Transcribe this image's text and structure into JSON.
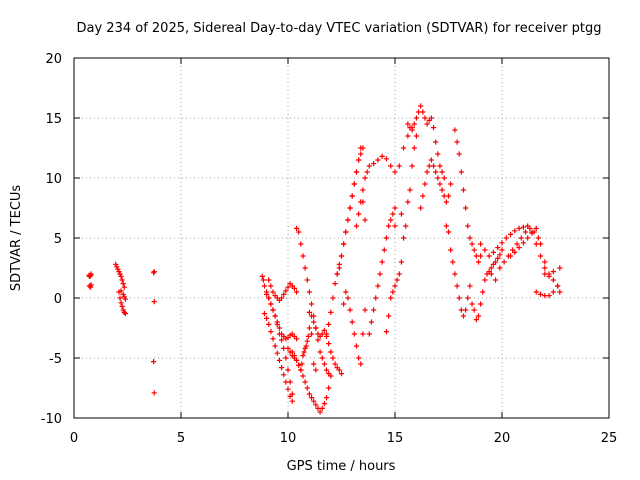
{
  "chart_data": {
    "type": "scatter",
    "title": "Day 234 of 2025, Sidereal Day-to-day VTEC variation (SDTVAR) for receiver ptgg",
    "xlabel": "GPS time / hours",
    "ylabel": "SDTVAR / TECUs",
    "xlim": [
      0,
      25
    ],
    "ylim": [
      -10,
      20
    ],
    "xticks": [
      "0",
      "5",
      "10",
      "15",
      "20",
      "25"
    ],
    "yticks": [
      "-10",
      "-5",
      "0",
      "5",
      "10",
      "15",
      "20"
    ],
    "grid": true,
    "marker": "+",
    "color": "#ff0000",
    "series": [
      {
        "name": "SDTVAR",
        "x": [
          0.7,
          0.72,
          0.75,
          0.78,
          0.8,
          0.72,
          0.75,
          0.78,
          0.8,
          1.95,
          2.0,
          2.05,
          2.1,
          2.15,
          2.2,
          2.25,
          2.3,
          2.35,
          2.1,
          2.15,
          2.2,
          2.25,
          2.3,
          2.35,
          2.4,
          2.2,
          2.3,
          2.35,
          2.4,
          3.72,
          3.75,
          3.75,
          3.72,
          3.75,
          8.8,
          8.85,
          8.9,
          9.0,
          9.1,
          9.2,
          9.3,
          9.4,
          9.5,
          9.6,
          9.7,
          9.8,
          9.9,
          10.0,
          10.1,
          10.2,
          9.1,
          9.2,
          9.3,
          9.4,
          9.5,
          9.6,
          9.7,
          9.8,
          9.9,
          10.0,
          10.1,
          10.2,
          10.3,
          10.4,
          8.9,
          9.0,
          9.1,
          9.2,
          9.3,
          9.4,
          9.5,
          9.6,
          9.7,
          9.8,
          9.9,
          10.0,
          10.1,
          10.2,
          9.0,
          9.1,
          9.2,
          9.3,
          9.4,
          9.5,
          9.6,
          9.7,
          9.8,
          9.9,
          10.0,
          10.1,
          10.2,
          10.3,
          10.4,
          10.0,
          10.1,
          10.2,
          10.3,
          10.4,
          10.5,
          10.6,
          10.65,
          10.7,
          10.75,
          10.8,
          10.85,
          10.9,
          10.95,
          11.0,
          11.1,
          11.2,
          11.3,
          10.4,
          10.5,
          10.6,
          10.7,
          10.8,
          10.9,
          11.0,
          11.1,
          11.2,
          11.3,
          11.4,
          11.5,
          11.6,
          11.7,
          11.8,
          11.9,
          12.0,
          10.2,
          10.3,
          10.4,
          10.5,
          10.6,
          10.7,
          10.8,
          10.9,
          11.0,
          11.1,
          11.2,
          11.3,
          11.4,
          11.5,
          11.6,
          11.7,
          11.8,
          11.9,
          11.0,
          11.1,
          11.2,
          11.3,
          11.4,
          11.5,
          11.6,
          11.7,
          11.8,
          11.9,
          12.0,
          12.1,
          12.2,
          12.3,
          12.4,
          12.5,
          11.8,
          11.9,
          12.0,
          12.1,
          12.2,
          12.3,
          12.4,
          12.5,
          12.6,
          12.7,
          12.8,
          12.9,
          13.0,
          13.1,
          13.2,
          13.3,
          13.4,
          13.5,
          12.3,
          12.4,
          12.5,
          12.6,
          12.7,
          12.8,
          12.9,
          13.0,
          13.1,
          13.2,
          13.3,
          13.4,
          13.5,
          13.6,
          12.6,
          12.7,
          12.8,
          12.9,
          13.0,
          13.1,
          13.2,
          13.3,
          13.4,
          13.5,
          13.6,
          13.2,
          13.3,
          13.4,
          13.5,
          13.6,
          13.7,
          13.8,
          14.0,
          14.2,
          14.4,
          14.6,
          14.8,
          15.0,
          15.2,
          15.4,
          15.6,
          15.8,
          13.8,
          13.9,
          14.0,
          14.1,
          14.2,
          14.3,
          14.4,
          14.5,
          14.6,
          14.7,
          14.8,
          14.9,
          15.0,
          15.3,
          15.0,
          14.6,
          14.7,
          14.8,
          14.9,
          15.0,
          15.1,
          15.2,
          15.3,
          15.4,
          15.5,
          15.6,
          15.7,
          15.8,
          15.9,
          16.0,
          15.6,
          15.7,
          15.8,
          15.9,
          16.0,
          16.1,
          16.2,
          16.3,
          16.4,
          16.5,
          16.6,
          16.7,
          16.8,
          16.9,
          17.0,
          17.1,
          17.2,
          17.3,
          16.2,
          16.3,
          16.4,
          16.5,
          16.6,
          16.7,
          16.8,
          16.9,
          17.0,
          17.1,
          17.2,
          17.3,
          17.4,
          17.5,
          17.6,
          17.4,
          17.5,
          17.6,
          17.7,
          17.8,
          17.9,
          18.0,
          18.1,
          18.2,
          18.3,
          18.4,
          18.5,
          17.8,
          17.9,
          18.0,
          18.1,
          18.2,
          18.3,
          18.4,
          18.5,
          18.6,
          18.7,
          18.8,
          18.9,
          19.0,
          18.6,
          18.7,
          18.8,
          18.9,
          19.0,
          19.1,
          19.2,
          19.3,
          19.4,
          19.5,
          19.6,
          19.7,
          19.8,
          19.9,
          20.0,
          19.0,
          19.2,
          19.4,
          19.6,
          19.8,
          20.0,
          20.2,
          20.4,
          20.6,
          20.8,
          21.0,
          21.2,
          21.4,
          21.6,
          21.8,
          22.0,
          19.5,
          19.7,
          19.9,
          20.1,
          20.3,
          20.5,
          20.7,
          20.9,
          21.1,
          21.3,
          21.5,
          21.7,
          20.4,
          20.6,
          20.8,
          21.0,
          21.2,
          21.4,
          21.6,
          21.8,
          22.0,
          22.2,
          22.4,
          22.6,
          22.7,
          21.6,
          21.8,
          22.0,
          22.2,
          22.4,
          22.6,
          22.7,
          22.0,
          22.2,
          22.4
        ],
        "y": [
          1.9,
          1.8,
          1.8,
          1.9,
          2.0,
          1.0,
          1.0,
          0.9,
          1.1,
          2.8,
          2.6,
          2.4,
          2.2,
          2.0,
          1.8,
          1.5,
          1.2,
          0.9,
          0.5,
          0.0,
          -0.4,
          -0.7,
          -1.0,
          -1.2,
          -1.3,
          0.6,
          0.3,
          0.1,
          -0.1,
          2.1,
          2.2,
          -0.3,
          -5.3,
          -7.9,
          1.8,
          1.5,
          1.0,
          0.5,
          0.0,
          -0.5,
          -1.0,
          -1.5,
          -2.2,
          -3.0,
          -3.5,
          -4.2,
          -5.0,
          -6.0,
          -7.0,
          -8.0,
          1.5,
          1.0,
          0.5,
          0.2,
          0.0,
          -0.2,
          0.0,
          0.3,
          0.6,
          0.9,
          1.2,
          1.0,
          0.8,
          0.5,
          -1.3,
          -1.7,
          -2.2,
          -2.8,
          -3.4,
          -4.0,
          -4.6,
          -5.2,
          -5.8,
          -6.4,
          -7.0,
          -7.6,
          -8.2,
          -8.6,
          0.3,
          0.0,
          -0.5,
          -1.0,
          -1.5,
          -2.0,
          -2.5,
          -3.0,
          -3.2,
          -3.4,
          -3.3,
          -3.1,
          -3.0,
          -3.2,
          -3.4,
          -4.2,
          -4.5,
          -4.8,
          -5.0,
          -5.2,
          -5.6,
          -6.0,
          -5.5,
          -4.8,
          -4.5,
          -4.2,
          -4.0,
          -3.6,
          -3.2,
          -2.5,
          -3.0,
          -5.5,
          -6.0,
          5.8,
          5.5,
          4.5,
          3.5,
          2.5,
          1.5,
          0.5,
          -0.5,
          -1.5,
          -2.5,
          -3.5,
          -4.5,
          -5.0,
          -5.5,
          -6.0,
          -6.3,
          -6.5,
          -4.5,
          -4.8,
          -5.2,
          -5.6,
          -6.0,
          -6.5,
          -7.0,
          -7.5,
          -8.0,
          -8.3,
          -8.6,
          -8.9,
          -9.2,
          -9.5,
          -9.2,
          -8.8,
          -8.3,
          -7.5,
          -1.2,
          -1.5,
          -2.0,
          -2.5,
          -3.0,
          -3.2,
          -3.0,
          -2.7,
          -3.2,
          -3.8,
          -4.5,
          -5.0,
          -5.5,
          -5.8,
          -6.0,
          -6.3,
          -3.0,
          -2.2,
          -1.2,
          0.0,
          1.2,
          2.0,
          2.8,
          3.5,
          4.5,
          5.5,
          6.5,
          7.5,
          8.5,
          9.5,
          10.5,
          11.5,
          12.0,
          12.5,
          2.0,
          2.5,
          3.5,
          4.5,
          5.5,
          6.5,
          7.5,
          8.5,
          9.5,
          10.5,
          11.5,
          12.5,
          8.0,
          6.5,
          -0.5,
          0.5,
          0.0,
          -1.0,
          -2.0,
          -3.0,
          -4.0,
          -5.0,
          -5.5,
          -3.0,
          -1.0,
          6.0,
          7.0,
          8.0,
          9.0,
          10.0,
          10.5,
          11.0,
          11.2,
          11.5,
          11.8,
          11.6,
          11.0,
          10.5,
          11.0,
          12.5,
          13.5,
          14.2,
          -3.0,
          -2.0,
          -1.0,
          0.0,
          1.0,
          2.0,
          3.0,
          4.0,
          5.0,
          6.0,
          6.5,
          7.0,
          7.5,
          7.0,
          6.0,
          -2.8,
          -1.5,
          0.0,
          0.5,
          1.0,
          1.5,
          2.0,
          3.0,
          5.0,
          6.0,
          8.0,
          9.0,
          11.0,
          12.5,
          13.5,
          14.5,
          14.2,
          14.0,
          14.5,
          15.0,
          15.5,
          16.0,
          15.5,
          15.0,
          14.5,
          14.8,
          15.0,
          14.2,
          13.0,
          12.0,
          11.0,
          10.5,
          10.0,
          7.5,
          8.5,
          9.5,
          10.5,
          11.0,
          11.5,
          11.0,
          10.5,
          10.0,
          9.5,
          9.0,
          8.5,
          8.0,
          8.5,
          9.5,
          6.0,
          5.5,
          4.0,
          3.0,
          2.0,
          1.0,
          0.0,
          -1.0,
          -1.5,
          -1.0,
          0.0,
          1.0,
          14.0,
          13.0,
          12.0,
          10.5,
          9.0,
          7.5,
          6.0,
          5.0,
          4.5,
          4.0,
          3.5,
          3.0,
          3.5,
          -0.5,
          -1.0,
          -1.8,
          -1.5,
          -0.5,
          0.5,
          1.5,
          2.0,
          2.2,
          2.5,
          2.8,
          3.0,
          3.3,
          3.6,
          4.0,
          4.5,
          4.0,
          3.5,
          3.8,
          4.2,
          4.6,
          5.0,
          5.3,
          5.6,
          5.8,
          5.9,
          6.0,
          5.5,
          4.5,
          3.5,
          2.5,
          2.0,
          1.5,
          2.5,
          3.0,
          3.5,
          4.0,
          4.5,
          5.0,
          5.5,
          5.8,
          5.5,
          5.0,
          3.5,
          3.8,
          4.2,
          4.6,
          5.0,
          5.4,
          5.8,
          4.5,
          3.0,
          2.0,
          1.5,
          1.0,
          0.5,
          0.5,
          0.3,
          0.2,
          0.2,
          0.5,
          1.0,
          2.5,
          2.0,
          1.8,
          2.2
        ]
      }
    ]
  }
}
